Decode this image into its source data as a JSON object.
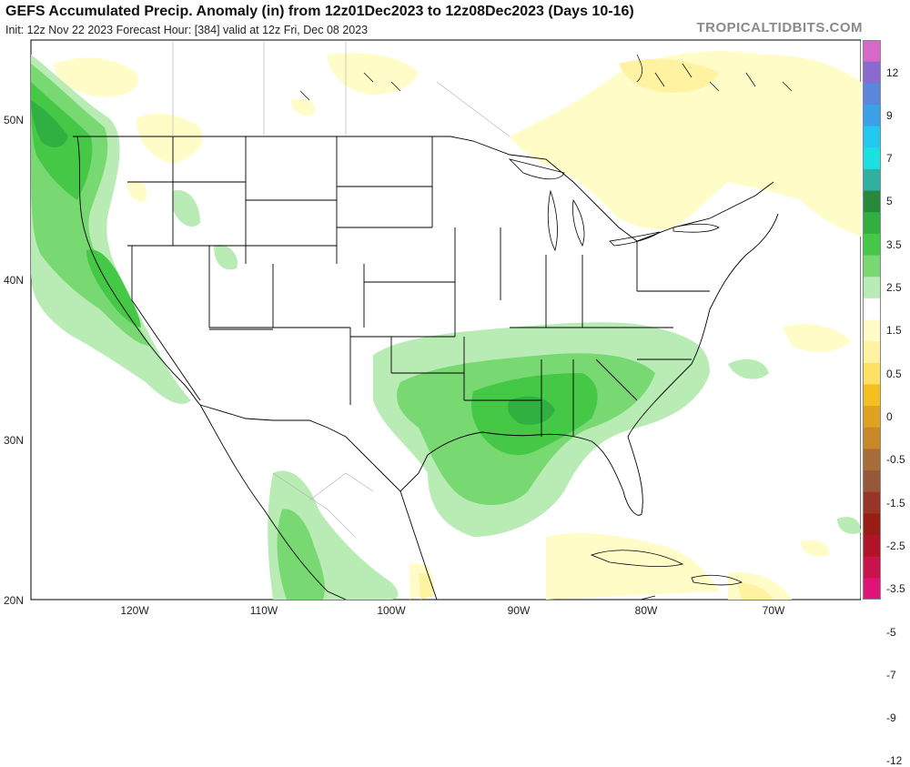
{
  "header": {
    "title": "GEFS Accumulated Precip. Anomaly (in) from 12z01Dec2023 to 12z08Dec2023 (Days 10-16)",
    "subtitle": "Init: 12z Nov 22 2023   Forecast Hour: [384]   valid at 12z Fri, Dec 08 2023",
    "brand": "TROPICALTIDBITS.COM"
  },
  "map": {
    "type": "precipitation anomaly map",
    "lat_range": [
      20,
      55
    ],
    "lon_range": [
      -128,
      -64
    ],
    "lat_labels": [
      "50N",
      "40N",
      "30N",
      "20N"
    ],
    "lon_labels": [
      "120W",
      "110W",
      "100W",
      "90W",
      "80W",
      "70W"
    ]
  },
  "legend": {
    "labels": [
      "12",
      "9",
      "7",
      "5",
      "3.5",
      "2.5",
      "1.5",
      "0.5",
      "0",
      "-0.5",
      "-1.5",
      "-2.5",
      "-3.5",
      "-5",
      "-7",
      "-9",
      "-12"
    ],
    "colors": [
      "#d668c8",
      "#8a6ad0",
      "#5a86dc",
      "#3aa0e8",
      "#22c8f0",
      "#1ae0e0",
      "#30b0a0",
      "#268a3a",
      "#30b040",
      "#44c845",
      "#78d872",
      "#b8ecb4",
      "#ffffff",
      "#fffcc8",
      "#fff2a0",
      "#ffe060",
      "#f4c020",
      "#e0a020",
      "#c88828",
      "#a86c38",
      "#985838",
      "#983428",
      "#981e14",
      "#b01426",
      "#c8144a",
      "#e01478"
    ]
  }
}
